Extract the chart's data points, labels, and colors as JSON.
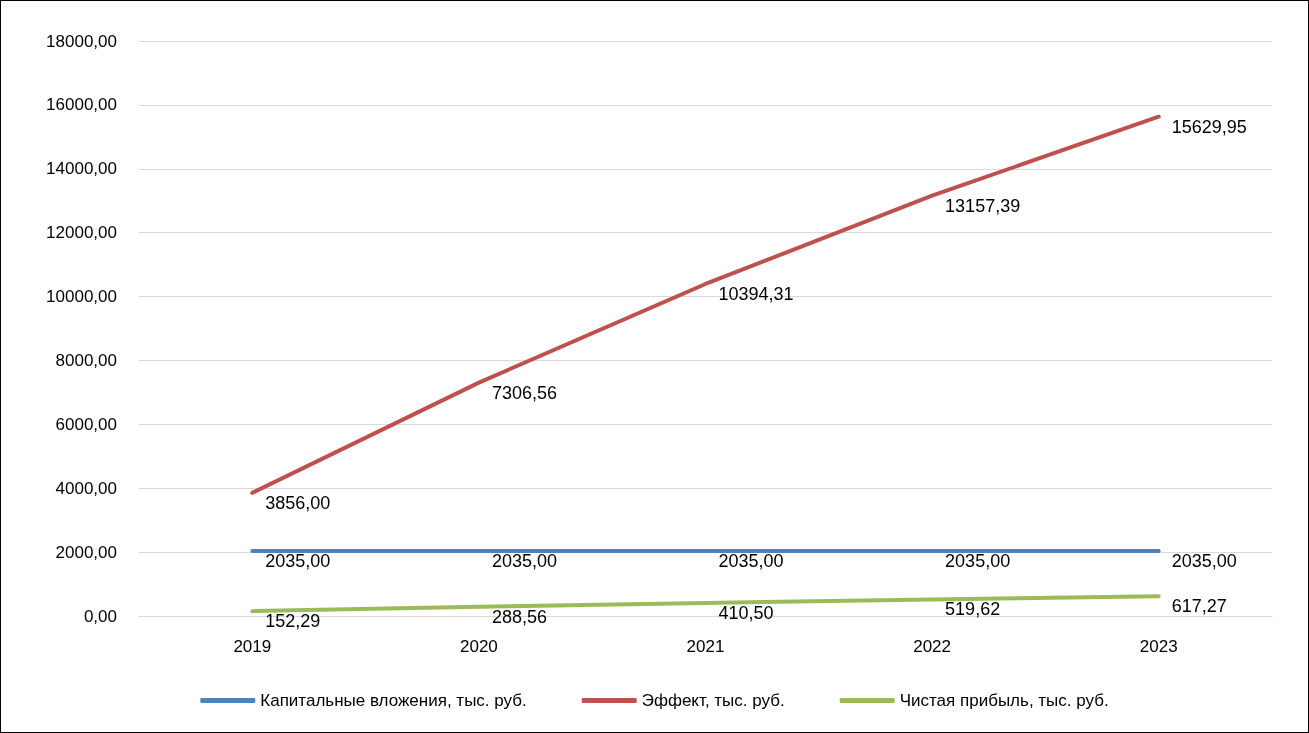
{
  "chart_data": {
    "type": "line",
    "categories": [
      "2019",
      "2020",
      "2021",
      "2022",
      "2023"
    ],
    "series": [
      {
        "name": "Капитальные вложения, тыс. руб.",
        "color": "#4f81bd",
        "values": [
          2035,
          2035,
          2035,
          2035,
          2035
        ],
        "value_labels": [
          "2035,00",
          "2035,00",
          "2035,00",
          "2035,00",
          "2035,00"
        ]
      },
      {
        "name": "Эффект, тыс. руб.",
        "color": "#c0504d",
        "values": [
          3856,
          7306.56,
          10394.31,
          13157.39,
          15629.95
        ],
        "value_labels": [
          "3856,00",
          "7306,56",
          "10394,31",
          "13157,39",
          "15629,95"
        ]
      },
      {
        "name": "Чистая прибыль, тыс. руб.",
        "color": "#9bbb59",
        "values": [
          152.29,
          288.56,
          410.5,
          519.62,
          617.27
        ],
        "value_labels": [
          "152,29",
          "288,56",
          "410,50",
          "519,62",
          "617,27"
        ]
      }
    ],
    "ylim": [
      0,
      18000
    ],
    "yticks": [
      {
        "value": 0,
        "label": "0,00"
      },
      {
        "value": 2000,
        "label": "2000,00"
      },
      {
        "value": 4000,
        "label": "4000,00"
      },
      {
        "value": 6000,
        "label": "6000,00"
      },
      {
        "value": 8000,
        "label": "8000,00"
      },
      {
        "value": 10000,
        "label": "10000,00"
      },
      {
        "value": 12000,
        "label": "12000,00"
      },
      {
        "value": 14000,
        "label": "14000,00"
      },
      {
        "value": 16000,
        "label": "16000,00"
      },
      {
        "value": 18000,
        "label": "18000,00"
      }
    ],
    "grid": "y",
    "legend": "bottom",
    "marker": "none",
    "line_style": "solid"
  }
}
